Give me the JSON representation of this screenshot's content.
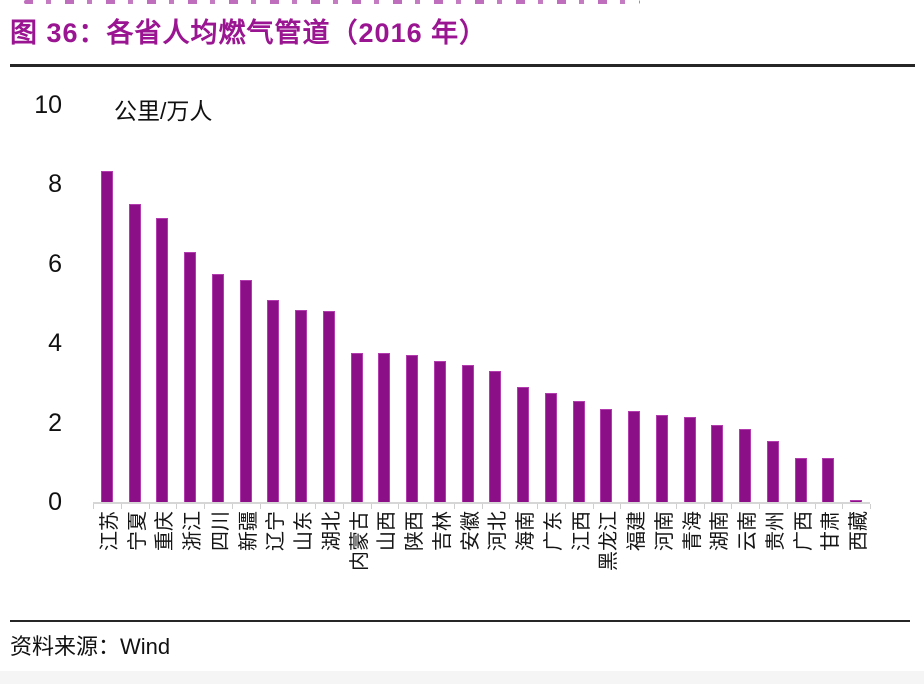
{
  "figure": {
    "title": "图 36：各省人均燃气管道（2016 年）",
    "source_label": "资料来源：Wind"
  },
  "chart_data": {
    "type": "bar",
    "title": "各省人均燃气管道（2016 年）",
    "unit_label": "公里/万人",
    "xlabel": "",
    "ylabel": "公里/万人",
    "ylim": [
      0,
      10
    ],
    "yticks": [
      0,
      2,
      4,
      6,
      8,
      10
    ],
    "grid": false,
    "legend": "none",
    "bar_color": "#8b0f87",
    "categories": [
      "江苏",
      "宁夏",
      "重庆",
      "浙江",
      "四川",
      "新疆",
      "辽宁",
      "山东",
      "湖北",
      "内蒙古",
      "山西",
      "陕西",
      "吉林",
      "安徽",
      "河北",
      "海南",
      "广东",
      "江西",
      "黑龙江",
      "福建",
      "河南",
      "青海",
      "湖南",
      "云南",
      "贵州",
      "广西",
      "甘肃",
      "西藏"
    ],
    "values": [
      8.35,
      7.5,
      7.15,
      6.3,
      5.75,
      5.6,
      5.1,
      4.85,
      4.8,
      3.75,
      3.75,
      3.7,
      3.55,
      3.45,
      3.3,
      2.9,
      2.75,
      2.55,
      2.35,
      2.3,
      2.2,
      2.15,
      1.95,
      1.85,
      1.55,
      1.1,
      1.1,
      0.05
    ]
  },
  "colors": {
    "title": "#9a1591",
    "bar_fill": "#8b0f87",
    "bar_edge": "#b23bae",
    "axis": "#d6d6d6",
    "rule": "#262626",
    "text": "#1a1a1a"
  }
}
